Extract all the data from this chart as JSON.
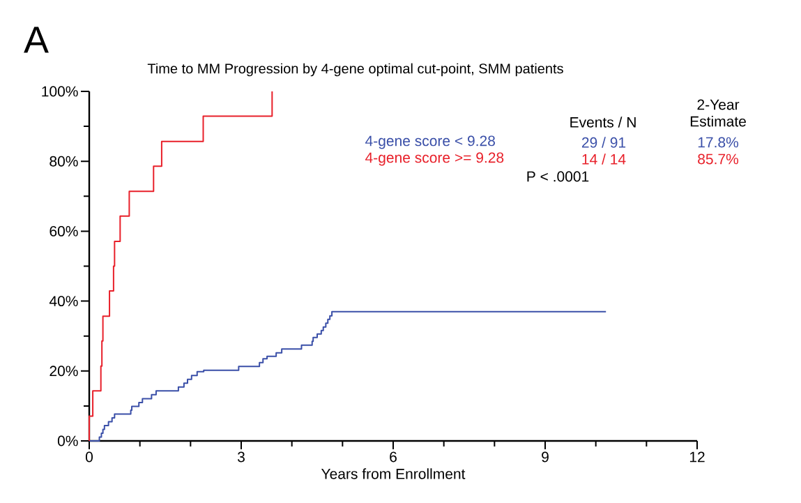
{
  "chart_data": {
    "type": "step",
    "title": "Time to MM Progression by 4-gene optimal cut-point, SMM patients",
    "xlabel": "Years from Enrollment",
    "xlim": [
      0,
      12
    ],
    "ylim": [
      0,
      100
    ],
    "xticks": [
      0,
      {
        "value": 1,
        "label": null
      },
      {
        "value": 2,
        "label": null
      },
      3,
      {
        "value": 4,
        "label": null
      },
      {
        "value": 5,
        "label": null
      },
      6,
      {
        "value": 7,
        "label": null
      },
      {
        "value": 8,
        "label": null
      },
      9,
      {
        "value": 10,
        "label": null
      },
      {
        "value": 11,
        "label": null
      },
      12
    ],
    "yticks": [
      {
        "value": 0,
        "label": "0%"
      },
      {
        "value": 10,
        "label": null
      },
      {
        "value": 20,
        "label": "20%"
      },
      {
        "value": 30,
        "label": null
      },
      {
        "value": 40,
        "label": "40%"
      },
      {
        "value": 50,
        "label": null
      },
      {
        "value": 60,
        "label": "60%"
      },
      {
        "value": 70,
        "label": null
      },
      {
        "value": 80,
        "label": "80%"
      },
      {
        "value": 90,
        "label": null
      },
      {
        "value": 100,
        "label": "100%"
      }
    ],
    "series": [
      {
        "name": "4-gene score < 9.28",
        "color": "#3a4fa8",
        "x": [
          0,
          0.2,
          0.24,
          0.27,
          0.3,
          0.38,
          0.45,
          0.5,
          0.82,
          0.84,
          0.98,
          1.05,
          1.23,
          1.32,
          1.76,
          1.87,
          1.94,
          2.02,
          2.13,
          2.26,
          2.95,
          3.36,
          3.43,
          3.51,
          3.69,
          3.8,
          4.19,
          4.4,
          4.42,
          4.5,
          4.58,
          4.62,
          4.67,
          4.71,
          4.75,
          4.79,
          10.2
        ],
        "values": [
          0,
          1.1,
          2.2,
          3.3,
          4.4,
          5.5,
          6.6,
          7.7,
          8.8,
          9.9,
          11,
          12.1,
          13.2,
          14.3,
          15.4,
          16.5,
          17.6,
          18.7,
          19.8,
          20.2,
          21.3,
          22.4,
          23.5,
          24.2,
          25.2,
          26.3,
          27.4,
          28.5,
          29.6,
          30.6,
          31.6,
          32.6,
          33.7,
          34.8,
          35.8,
          37.0,
          37.0
        ]
      },
      {
        "name": "4-gene score >= 9.28",
        "color": "#e8202a",
        "x": [
          0,
          0,
          0.07,
          0.23,
          0.25,
          0.27,
          0.4,
          0.48,
          0.5,
          0.61,
          0.79,
          1.27,
          1.43,
          2.25,
          3.61
        ],
        "values": [
          0,
          7.1,
          14.3,
          21.4,
          28.6,
          35.7,
          42.9,
          50,
          57.1,
          64.3,
          71.4,
          78.6,
          85.7,
          92.9,
          100
        ]
      }
    ],
    "annotations": [
      "A",
      "Events / N",
      "2-Year Estimate",
      "29 / 91",
      "17.8%",
      "14 / 14",
      "85.7%",
      "P < .0001"
    ]
  }
}
